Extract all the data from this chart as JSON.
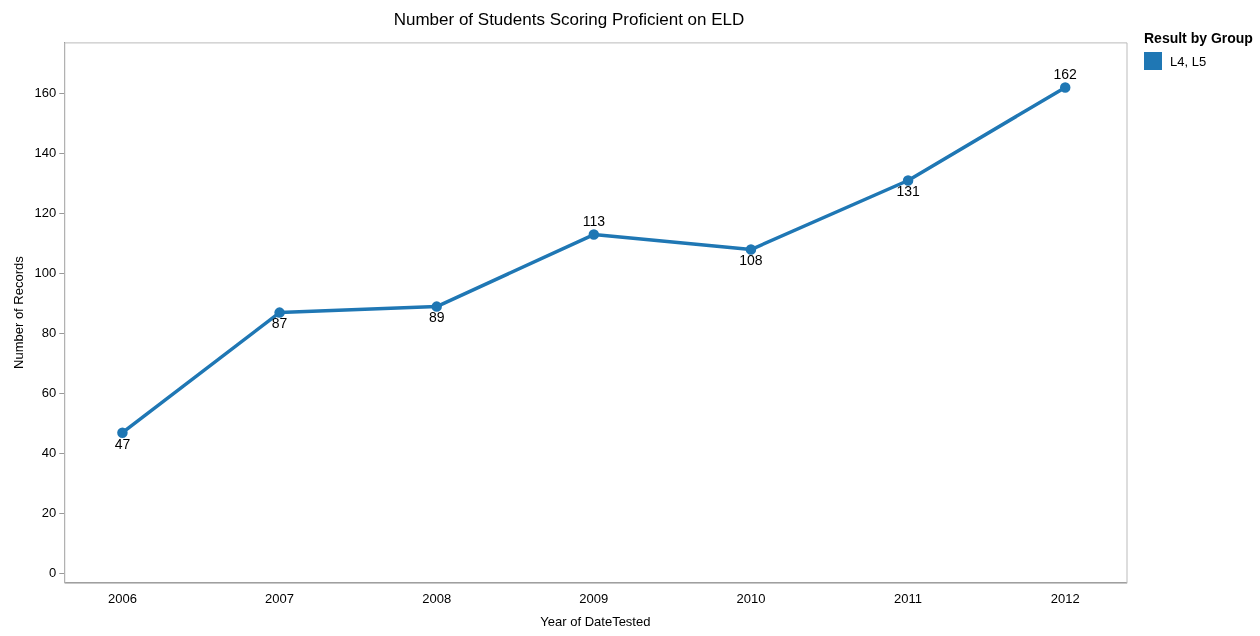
{
  "chart_data": {
    "type": "line",
    "title": "Number of Students Scoring Proficient on ELD",
    "xlabel": "Year of DateTested",
    "ylabel": "Number of Records",
    "legend_title": "Result by Group",
    "x": [
      2006,
      2007,
      2008,
      2009,
      2010,
      2011,
      2012
    ],
    "series": [
      {
        "name": "L4, L5",
        "color": "#1f77b4",
        "values": [
          47,
          87,
          89,
          113,
          108,
          131,
          162
        ]
      }
    ],
    "xlim": [
      2005.63,
      2012.39
    ],
    "xticks": [
      2006,
      2007,
      2008,
      2009,
      2010,
      2011,
      2012
    ],
    "ylim": [
      -3,
      177
    ],
    "yticks": [
      0,
      20,
      40,
      60,
      80,
      100,
      120,
      140,
      160
    ],
    "grid": false,
    "legend": "top right",
    "marker": "circle",
    "line_style": "solid",
    "data_labels": true
  }
}
